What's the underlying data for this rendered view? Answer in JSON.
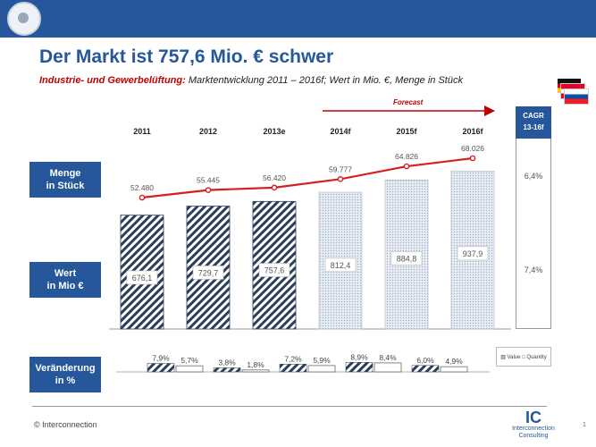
{
  "header": {
    "title": "Der Markt ist 757,6 Mio. € schwer",
    "subtitle_lead": "Industrie- und Gewerbelüftung:",
    "subtitle_rest": " Marktentwicklung  2011 – 2016f; Wert in  Mio. €, Menge in Stück"
  },
  "side_labels": {
    "menge": [
      "Menge",
      "in Stück"
    ],
    "wert": [
      "Wert",
      "in Mio €"
    ],
    "veraenderung": [
      "Veränderung",
      "in %"
    ]
  },
  "cagr": {
    "header": [
      "CAGR",
      "13-16f"
    ],
    "menge": "6,4%",
    "wert": "7,4%"
  },
  "legend_text": "▨ Value □ Quantity",
  "footer": {
    "copyright": "© Interconnection",
    "page": "1",
    "logo_mark": "IC",
    "logo_name": [
      "Interconnection",
      "Consulting"
    ]
  },
  "colors": {
    "brand": "#26579a",
    "line": "#d42020",
    "forecast_red": "#c00000"
  },
  "chart_data": {
    "type": "bar",
    "categories": [
      "2011",
      "2012",
      "2013e",
      "2014f",
      "2015f",
      "2016f"
    ],
    "forecast_label": "Forecast",
    "forecast_from": "2014f",
    "value_series": {
      "values": [
        676.1,
        729.7,
        757.6,
        812.4,
        884.8,
        937.9
      ],
      "labels": [
        "676,1",
        "729,7",
        "757,6",
        "812,4",
        "884,8",
        "937,9"
      ]
    },
    "quantity_series": {
      "values": [
        52480,
        55445,
        56420,
        59777,
        64826,
        68026
      ],
      "labels": [
        "52.480",
        "55.445",
        "56.420",
        "59.777",
        "64.826",
        "68.026"
      ]
    },
    "change_pct": {
      "value": [
        7.9,
        3.8,
        7.2,
        8.9,
        6.0
      ],
      "quantity": [
        5.7,
        1.8,
        5.9,
        8.4,
        4.9
      ],
      "value_labels": [
        "7,9%",
        "3,8%",
        "7,2%",
        "8,9%",
        "6,0%"
      ],
      "quantity_labels": [
        "5,7%",
        "1,8%",
        "5,9%",
        "8,4%",
        "4,9%"
      ]
    }
  }
}
